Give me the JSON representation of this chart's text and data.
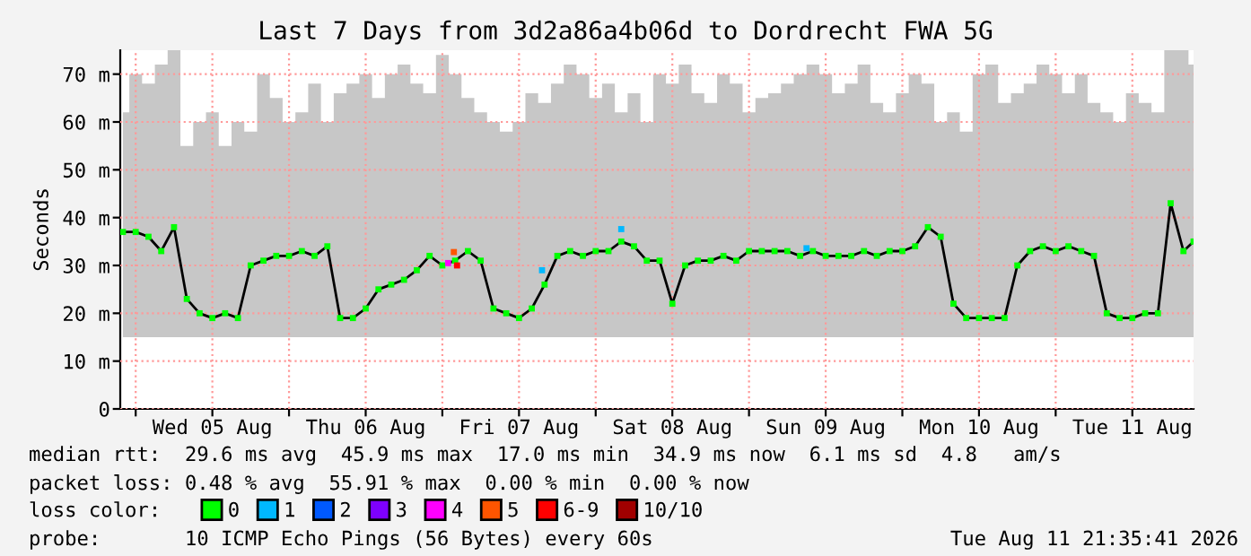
{
  "chart_data": {
    "type": "line",
    "title": "Last 7 Days from 3d2a86a4b06d to Dordrecht FWA 5G",
    "ylabel": "Seconds",
    "x": [
      "2026-08-04T22:00",
      "2026-08-05T00:00",
      "2026-08-05T02:00",
      "2026-08-05T04:00",
      "2026-08-05T06:00",
      "2026-08-05T08:00",
      "2026-08-05T10:00",
      "2026-08-05T12:00",
      "2026-08-05T14:00",
      "2026-08-05T16:00",
      "2026-08-05T18:00",
      "2026-08-05T20:00",
      "2026-08-05T22:00",
      "2026-08-06T00:00",
      "2026-08-06T02:00",
      "2026-08-06T04:00",
      "2026-08-06T06:00",
      "2026-08-06T08:00",
      "2026-08-06T10:00",
      "2026-08-06T12:00",
      "2026-08-06T14:00",
      "2026-08-06T16:00",
      "2026-08-06T18:00",
      "2026-08-06T20:00",
      "2026-08-06T22:00",
      "2026-08-07T00:00",
      "2026-08-07T02:00",
      "2026-08-07T04:00",
      "2026-08-07T06:00",
      "2026-08-07T08:00",
      "2026-08-07T10:00",
      "2026-08-07T12:00",
      "2026-08-07T14:00",
      "2026-08-07T16:00",
      "2026-08-07T18:00",
      "2026-08-07T20:00",
      "2026-08-07T22:00",
      "2026-08-08T00:00",
      "2026-08-08T02:00",
      "2026-08-08T04:00",
      "2026-08-08T06:00",
      "2026-08-08T08:00",
      "2026-08-08T10:00",
      "2026-08-08T12:00",
      "2026-08-08T14:00",
      "2026-08-08T16:00",
      "2026-08-08T18:00",
      "2026-08-08T20:00",
      "2026-08-08T22:00",
      "2026-08-09T00:00",
      "2026-08-09T02:00",
      "2026-08-09T04:00",
      "2026-08-09T06:00",
      "2026-08-09T08:00",
      "2026-08-09T10:00",
      "2026-08-09T12:00",
      "2026-08-09T14:00",
      "2026-08-09T16:00",
      "2026-08-09T18:00",
      "2026-08-09T20:00",
      "2026-08-09T22:00",
      "2026-08-10T00:00",
      "2026-08-10T02:00",
      "2026-08-10T04:00",
      "2026-08-10T06:00",
      "2026-08-10T08:00",
      "2026-08-10T10:00",
      "2026-08-10T12:00",
      "2026-08-10T14:00",
      "2026-08-10T16:00",
      "2026-08-10T18:00",
      "2026-08-10T20:00",
      "2026-08-10T22:00",
      "2026-08-11T00:00",
      "2026-08-11T02:00",
      "2026-08-11T04:00",
      "2026-08-11T06:00",
      "2026-08-11T08:00",
      "2026-08-11T10:00",
      "2026-08-11T12:00",
      "2026-08-11T14:00",
      "2026-08-11T16:00",
      "2026-08-11T18:00",
      "2026-08-11T20:00",
      "2026-08-11T21:35"
    ],
    "series": [
      {
        "color": "#000000",
        "marker": "none",
        "values": [
          37,
          37,
          36,
          33,
          38,
          23,
          20,
          19,
          20,
          19,
          30,
          31,
          32,
          32,
          33,
          32,
          34,
          19,
          19,
          21,
          25,
          26,
          27,
          29,
          32,
          30,
          31,
          33,
          31,
          21,
          20,
          19,
          21,
          26,
          32,
          33,
          32,
          33,
          33,
          35,
          34,
          31,
          31,
          22,
          30,
          31,
          31,
          32,
          31,
          33,
          33,
          33,
          33,
          32,
          33,
          32,
          32,
          32,
          33,
          32,
          33,
          33,
          34,
          38,
          36,
          22,
          19,
          19,
          19,
          19,
          30,
          33,
          34,
          33,
          34,
          33,
          32,
          20,
          19,
          19,
          20,
          20,
          43,
          33,
          35
        ],
        "lower": [
          15,
          15,
          15,
          15,
          15,
          15,
          15,
          15,
          15,
          15,
          15,
          15,
          15,
          15,
          15,
          15,
          15,
          15,
          15,
          15,
          15,
          15,
          15,
          15,
          15,
          15,
          15,
          15,
          15,
          15,
          15,
          15,
          15,
          15,
          15,
          15,
          15,
          15,
          15,
          15,
          15,
          15,
          15,
          15,
          15,
          15,
          15,
          15,
          15,
          15,
          15,
          15,
          15,
          15,
          15,
          15,
          15,
          15,
          15,
          15,
          15,
          15,
          15,
          15,
          15,
          15,
          15,
          15,
          15,
          15,
          15,
          15,
          15,
          15,
          15,
          15,
          15,
          15,
          15,
          15,
          15,
          15,
          15,
          15,
          15
        ],
        "upper": [
          62,
          70,
          68,
          72,
          75,
          55,
          60,
          62,
          55,
          60,
          58,
          70,
          65,
          60,
          62,
          68,
          60,
          66,
          68,
          70,
          65,
          70,
          72,
          68,
          66,
          74,
          70,
          65,
          62,
          60,
          58,
          60,
          66,
          64,
          68,
          72,
          70,
          65,
          68,
          62,
          66,
          60,
          70,
          68,
          72,
          66,
          64,
          70,
          68,
          62,
          65,
          66,
          68,
          70,
          72,
          70,
          66,
          68,
          72,
          64,
          62,
          66,
          70,
          68,
          60,
          62,
          58,
          70,
          72,
          64,
          66,
          68,
          72,
          70,
          66,
          70,
          64,
          62,
          60,
          66,
          64,
          62,
          75,
          75,
          72
        ]
      },
      {
        "type": "scatter",
        "name": "0",
        "color": "#00ff00",
        "values": [
          37,
          37,
          36,
          33,
          38,
          23,
          20,
          19,
          20,
          19,
          30,
          31,
          32,
          32,
          33,
          32,
          34,
          19,
          19,
          21,
          25,
          26,
          27,
          29,
          32,
          30,
          31,
          33,
          31,
          21,
          20,
          19,
          21,
          26,
          32,
          33,
          32,
          33,
          33,
          35,
          34,
          31,
          31,
          22,
          30,
          31,
          31,
          32,
          31,
          33,
          33,
          33,
          33,
          32,
          33,
          32,
          32,
          32,
          33,
          32,
          33,
          33,
          34,
          38,
          36,
          22,
          19,
          19,
          19,
          19,
          30,
          33,
          34,
          33,
          34,
          33,
          32,
          20,
          19,
          19,
          20,
          20,
          43,
          33,
          35
        ]
      },
      {
        "type": "scatter",
        "name": "1",
        "color": "#00b8ff",
        "x": [
          "2026-08-07T15:36",
          "2026-08-08T04:00",
          "2026-08-09T09:00"
        ],
        "values": [
          29,
          37.6,
          33.6
        ]
      },
      {
        "type": "scatter",
        "name": "2",
        "color": "#0059ff",
        "values": [
          null,
          null,
          null,
          null,
          null,
          null,
          null,
          null,
          null,
          null,
          null,
          null,
          null,
          null,
          null,
          null,
          null,
          null,
          null,
          null,
          null,
          null,
          null,
          null,
          null,
          null,
          null,
          null,
          null,
          null,
          null,
          null,
          null,
          null,
          null,
          null,
          null,
          null,
          null,
          null,
          null,
          null,
          null,
          null,
          null,
          null,
          null,
          null,
          null,
          null,
          null,
          null,
          null,
          null,
          null,
          null,
          null,
          null,
          null,
          null,
          null,
          null,
          null,
          null,
          null,
          null,
          null,
          null,
          null,
          null,
          null,
          null,
          null,
          null,
          null,
          null,
          null,
          null,
          null,
          null,
          null,
          null,
          null,
          null,
          null
        ]
      },
      {
        "type": "scatter",
        "name": "3",
        "color": "#7e00ff",
        "values": [
          null,
          null,
          null,
          null,
          null,
          null,
          null,
          null,
          null,
          null,
          null,
          null,
          null,
          null,
          null,
          null,
          null,
          null,
          null,
          null,
          null,
          null,
          null,
          null,
          null,
          null,
          null,
          null,
          null,
          null,
          null,
          null,
          null,
          null,
          null,
          null,
          null,
          null,
          null,
          null,
          null,
          null,
          null,
          null,
          null,
          null,
          null,
          null,
          null,
          null,
          null,
          null,
          null,
          null,
          null,
          null,
          null,
          null,
          null,
          null,
          null,
          null,
          null,
          null,
          null,
          null,
          null,
          null,
          null,
          null,
          null,
          null,
          null,
          null,
          null,
          null,
          null,
          null,
          null,
          null,
          null,
          null,
          null,
          null,
          null
        ]
      },
      {
        "type": "scatter",
        "name": "4",
        "color": "#ff00ff",
        "x": [
          "2026-08-07T00:54"
        ],
        "values": [
          30.5
        ]
      },
      {
        "type": "scatter",
        "name": "5",
        "color": "#ff5500",
        "x": [
          "2026-08-07T01:48"
        ],
        "values": [
          32.8
        ]
      },
      {
        "type": "scatter",
        "name": "6-9",
        "color": "#ff0000",
        "x": [
          "2026-08-07T02:18"
        ],
        "values": [
          30
        ]
      },
      {
        "type": "scatter",
        "name": "10/10",
        "color": "#a10000",
        "values": [
          null,
          null,
          null,
          null,
          null,
          null,
          null,
          null,
          null,
          null,
          null,
          null,
          null,
          null,
          null,
          null,
          null,
          null,
          null,
          null,
          null,
          null,
          null,
          null,
          null,
          null,
          null,
          null,
          null,
          null,
          null,
          null,
          null,
          null,
          null,
          null,
          null,
          null,
          null,
          null,
          null,
          null,
          null,
          null,
          null,
          null,
          null,
          null,
          null,
          null,
          null,
          null,
          null,
          null,
          null,
          null,
          null,
          null,
          null,
          null,
          null,
          null,
          null,
          null,
          null,
          null,
          null,
          null,
          null,
          null,
          null,
          null,
          null,
          null,
          null,
          null,
          null,
          null,
          null,
          null,
          null,
          null,
          null,
          null,
          null
        ]
      }
    ],
    "marker": "square",
    "legend": "bottom",
    "legend_title": "loss color:",
    "grid": true,
    "xlim": [
      "2026-08-04T21:35",
      "2026-08-11T21:35"
    ],
    "xticks": [
      {
        "value": "2026-08-05T00:00",
        "label": null
      },
      {
        "value": "2026-08-05T12:00",
        "label": "Wed 05 Aug"
      },
      {
        "value": "2026-08-06T00:00",
        "label": null
      },
      {
        "value": "2026-08-06T12:00",
        "label": "Thu 06 Aug"
      },
      {
        "value": "2026-08-07T00:00",
        "label": null
      },
      {
        "value": "2026-08-07T12:00",
        "label": "Fri 07 Aug"
      },
      {
        "value": "2026-08-08T00:00",
        "label": null
      },
      {
        "value": "2026-08-08T12:00",
        "label": "Sat 08 Aug"
      },
      {
        "value": "2026-08-09T00:00",
        "label": null
      },
      {
        "value": "2026-08-09T12:00",
        "label": "Sun 09 Aug"
      },
      {
        "value": "2026-08-10T00:00",
        "label": null
      },
      {
        "value": "2026-08-10T12:00",
        "label": "Mon 10 Aug"
      },
      {
        "value": "2026-08-11T00:00",
        "label": null
      },
      {
        "value": "2026-08-11T12:00",
        "label": "Tue 11 Aug"
      }
    ],
    "ylim": [
      0,
      75
    ],
    "yticks": [
      0,
      {
        "value": 10,
        "label": "10 m"
      },
      {
        "value": 20,
        "label": "20 m"
      },
      {
        "value": 30,
        "label": "30 m"
      },
      {
        "value": 40,
        "label": "40 m"
      },
      {
        "value": 50,
        "label": "50 m"
      },
      {
        "value": 60,
        "label": "60 m"
      },
      {
        "value": 70,
        "label": "70 m"
      }
    ],
    "annotations": [
      "median rtt:  29.6 ms avg  45.9 ms max  17.0 ms min  34.9 ms now  6.1 ms sd  4.8   am/s",
      "packet loss: 0.48 % avg  55.91 % max  0.00 % min  0.00 % now",
      "probe:       10 ICMP Echo Pings (56 Bytes) every 60s",
      "Tue Aug 11 21:35:41 2026"
    ]
  }
}
